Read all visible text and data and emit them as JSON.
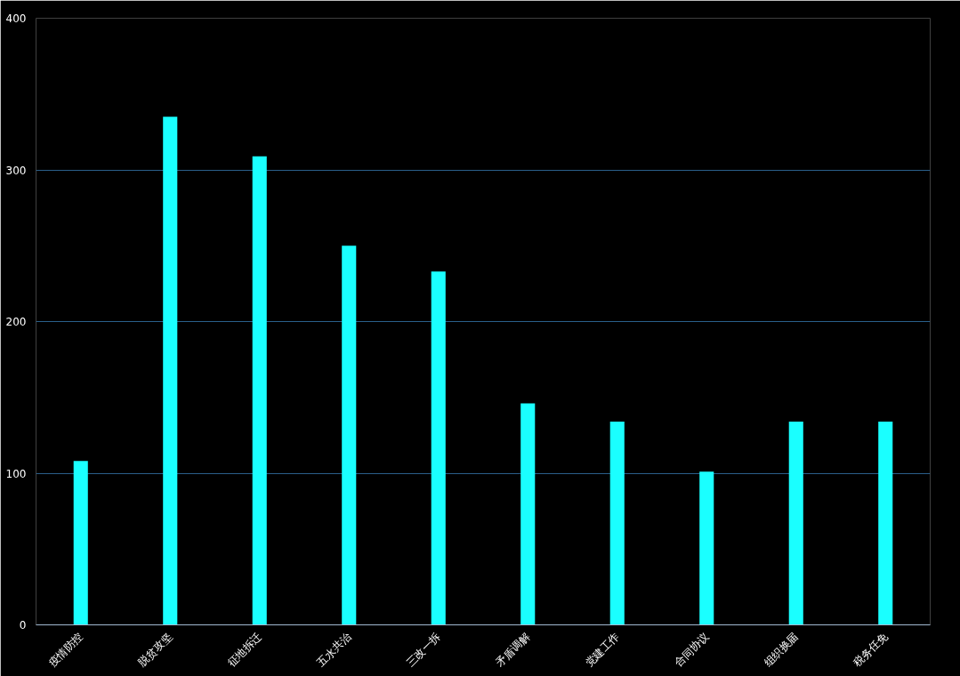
{
  "chart_data": {
    "type": "bar",
    "categories": [
      "疫情防控",
      "脱贫攻坚",
      "征地拆迁",
      "五水共治",
      "三改一拆",
      "矛盾调解",
      "党建工作",
      "合同协议",
      "组织换届",
      "税务任免"
    ],
    "values": [
      108,
      335,
      309,
      250,
      233,
      146,
      134,
      101,
      134,
      134
    ],
    "color": "#1affff",
    "ylim": [
      0,
      400
    ],
    "yticks": [
      0,
      100,
      200,
      300,
      400
    ],
    "grid": "y"
  }
}
